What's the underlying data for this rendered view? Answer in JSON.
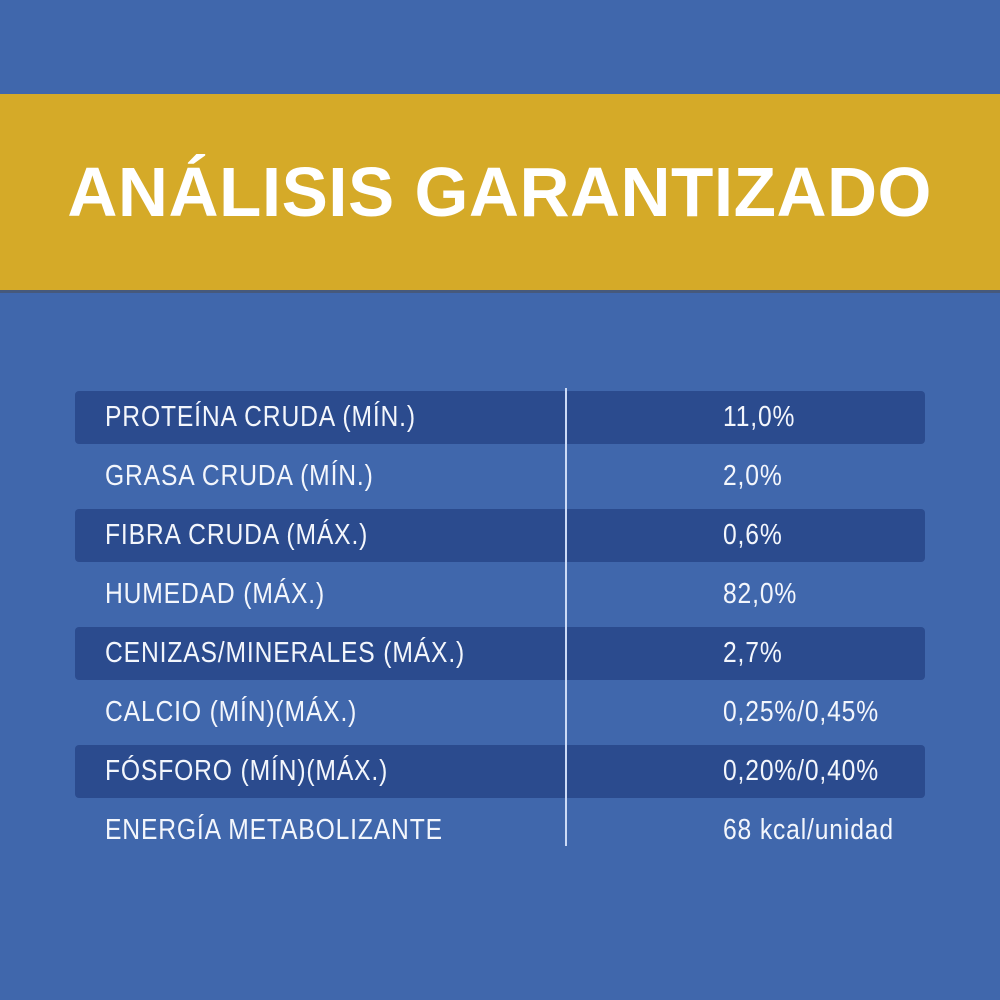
{
  "header": {
    "title": "ANÁLISIS GARANTIZADO"
  },
  "colors": {
    "background": "#4067ac",
    "header_band": "#d5aa28",
    "header_band_edge": "#46597c",
    "row_highlight": "#2b4b8e",
    "row_text": "#f3f6fc",
    "title_text": "#ffffff",
    "column_divider": "#ccdaf6"
  },
  "table": {
    "rows": [
      {
        "label": "PROTEÍNA CRUDA (MÍN.)",
        "value": "11,0%",
        "highlighted": true
      },
      {
        "label": "GRASA CRUDA (MÍN.)",
        "value": "2,0%",
        "highlighted": false
      },
      {
        "label": "FIBRA CRUDA (MÁX.)",
        "value": "0,6%",
        "highlighted": true
      },
      {
        "label": "HUMEDAD (MÁX.)",
        "value": "82,0%",
        "highlighted": false
      },
      {
        "label": "CENIZAS/MINERALES (MÁX.)",
        "value": "2,7%",
        "highlighted": true
      },
      {
        "label": "CALCIO (MÍN)(MÁX.)",
        "value": "0,25%/0,45%",
        "highlighted": false
      },
      {
        "label": "FÓSFORO (MÍN)(MÁX.)",
        "value": "0,20%/0,40%",
        "highlighted": true
      },
      {
        "label": "ENERGÍA METABOLIZANTE",
        "value": "68 kcal/unidad",
        "highlighted": false
      }
    ]
  }
}
